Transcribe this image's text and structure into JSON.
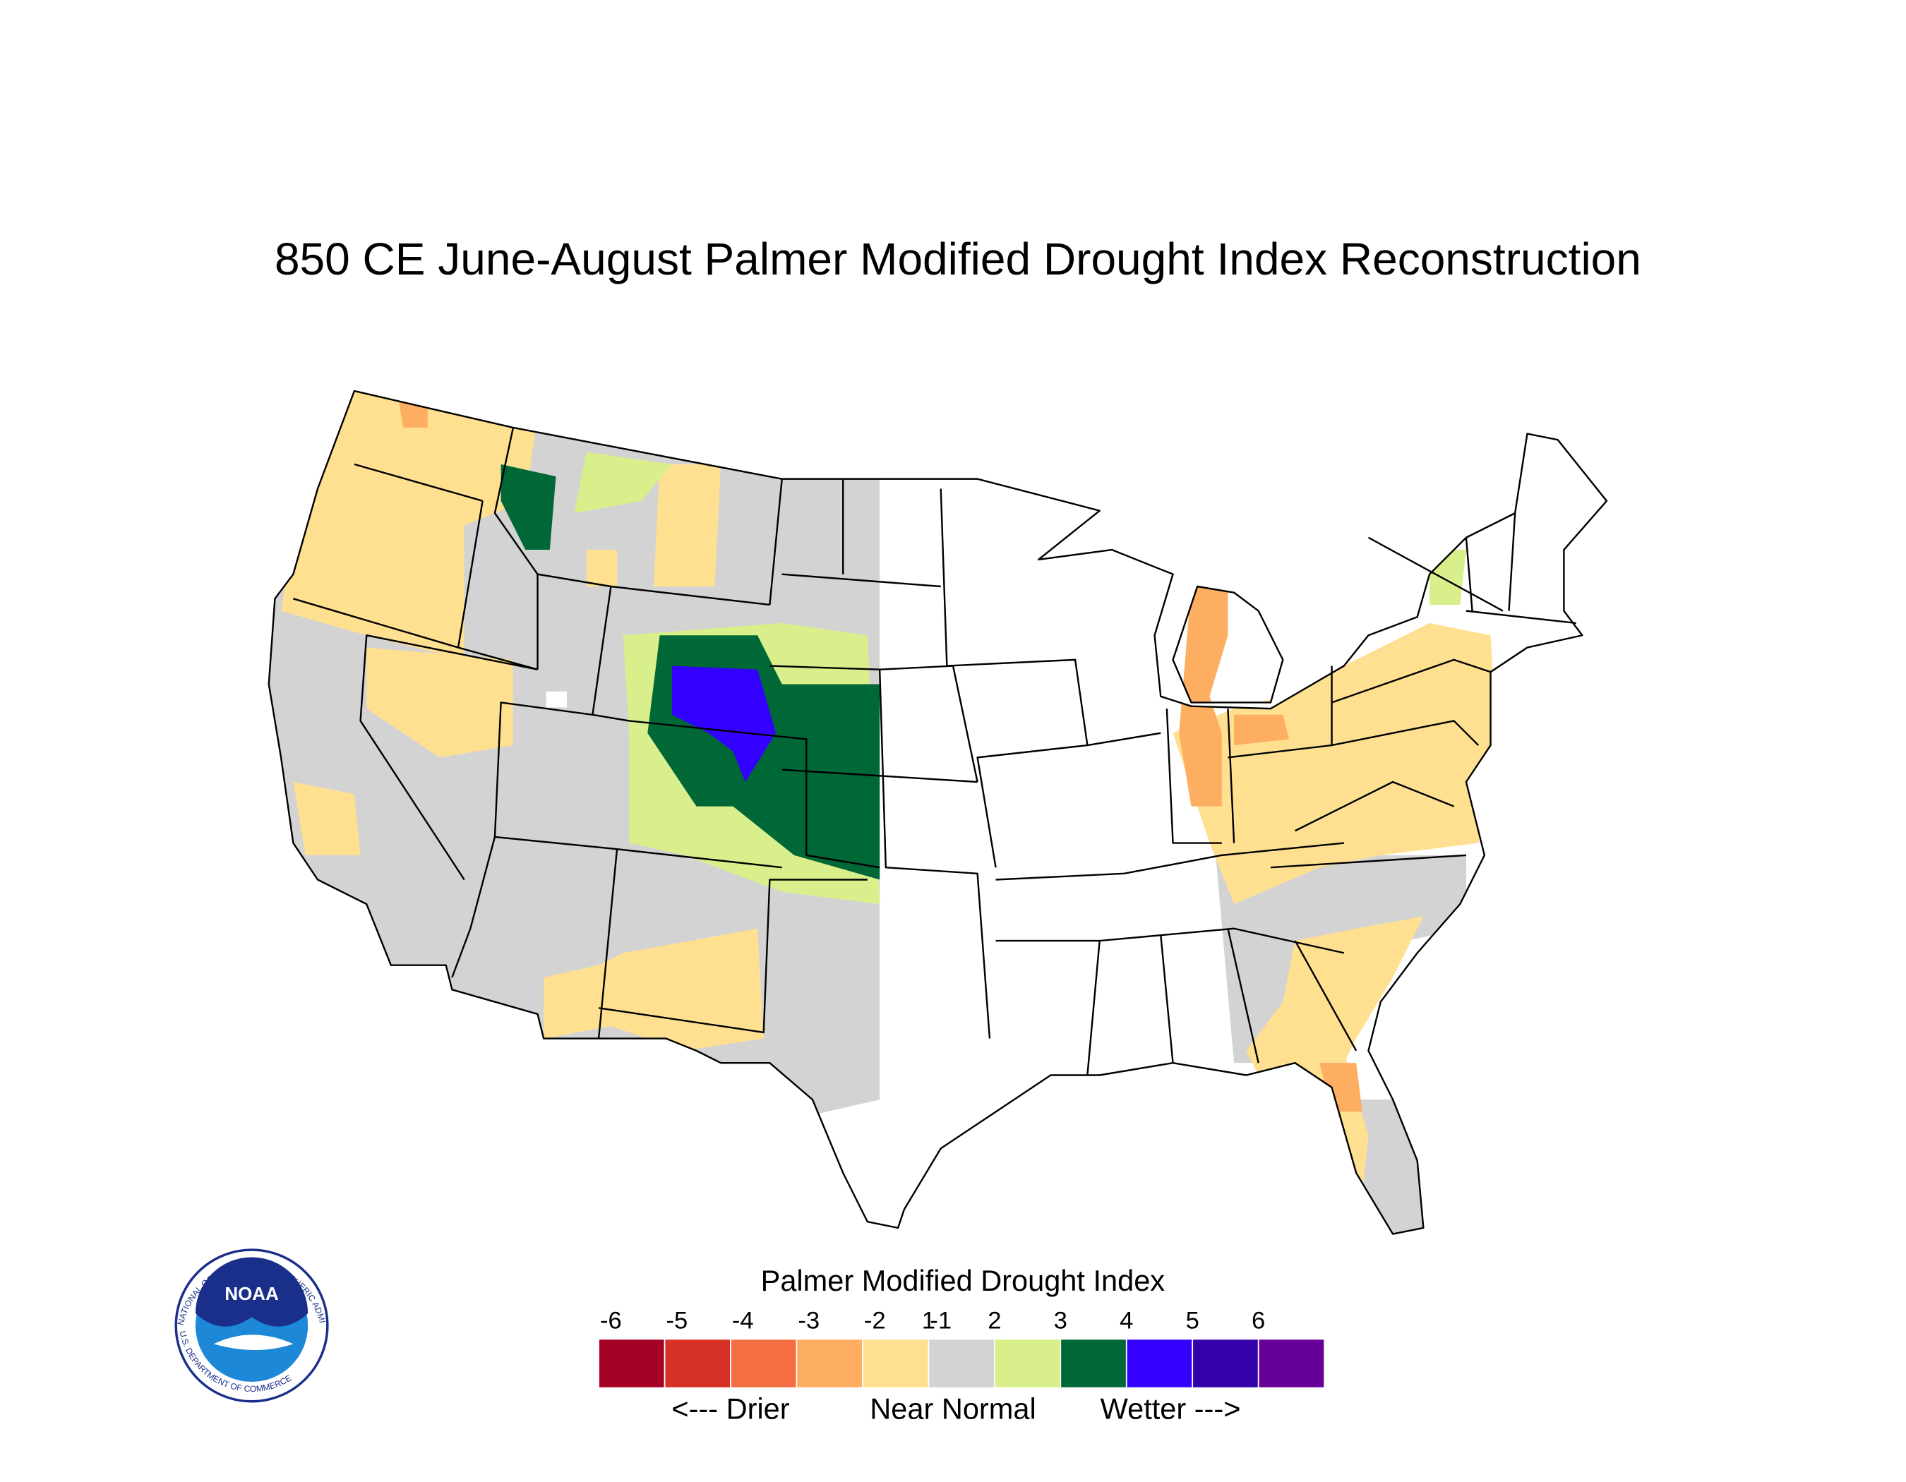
{
  "title": "850 CE  June-August  Palmer Modified Drought Index Reconstruction",
  "legend": {
    "title": "Palmer Modified Drought Index",
    "ticks": [
      -6,
      -5,
      -4,
      -3,
      -2,
      -1,
      1,
      2,
      3,
      4,
      5,
      6
    ],
    "colors": [
      "#a50026",
      "#d73027",
      "#f46d43",
      "#fdae61",
      "#fee090",
      "#d3d3d3",
      "#d9ef8b",
      "#006837",
      "#3300ff",
      "#3300aa",
      "#660099"
    ],
    "captions": [
      "<--- Drier",
      "Near Normal",
      "Wetter --->"
    ]
  },
  "logo": {
    "label": "NOAA",
    "ring_top": "NATIONAL OCEANIC AND ATMOSPHERIC ADMINISTRATION",
    "ring_bottom": "U.S. DEPARTMENT OF COMMERCE"
  }
}
